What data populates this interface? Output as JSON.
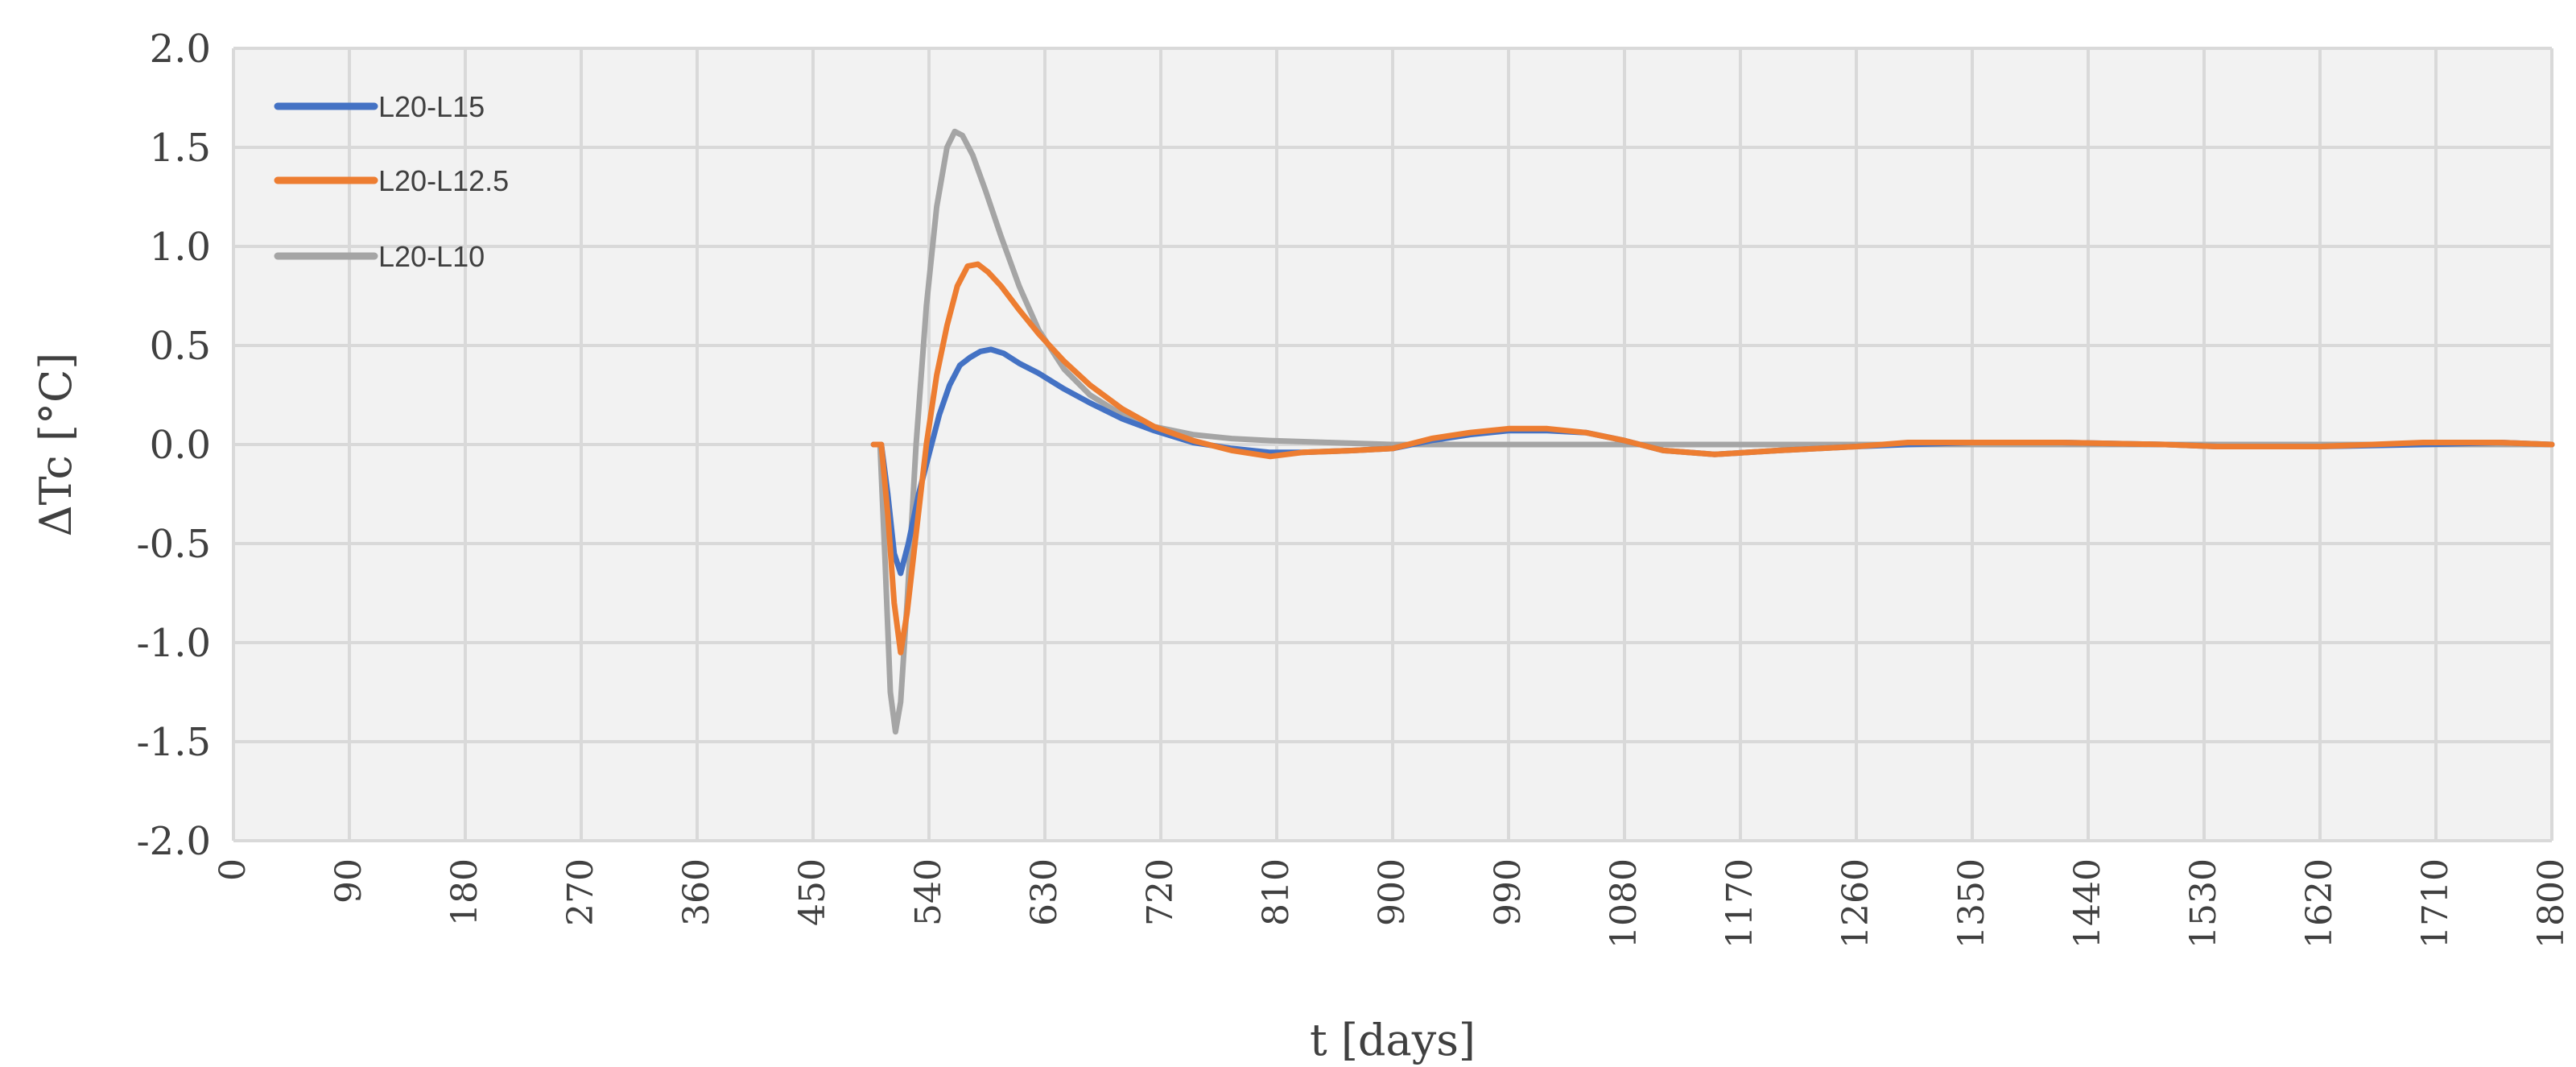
{
  "chart_data": {
    "type": "line",
    "xlabel": "t [days]",
    "ylabel": "ΔTc [°C]",
    "xlim": [
      0,
      1800
    ],
    "ylim": [
      -2.0,
      2.0
    ],
    "x_ticks": [
      0,
      90,
      180,
      270,
      360,
      450,
      540,
      630,
      720,
      810,
      900,
      990,
      1080,
      1170,
      1260,
      1350,
      1440,
      1530,
      1620,
      1710,
      1800
    ],
    "y_ticks": [
      "2.0",
      "1.5",
      "1.0",
      "0.5",
      "0.0",
      "-0.5",
      "-1.0",
      "-1.5",
      "-2.0"
    ],
    "grid": true,
    "legend_position": "top-left",
    "series": [
      {
        "name": "L20-L15",
        "color": "#4472C4",
        "points": [
          [
            497,
            0
          ],
          [
            503,
            0
          ],
          [
            508,
            -0.25
          ],
          [
            513,
            -0.55
          ],
          [
            518,
            -0.65
          ],
          [
            524,
            -0.5
          ],
          [
            532,
            -0.25
          ],
          [
            540,
            -0.05
          ],
          [
            548,
            0.15
          ],
          [
            556,
            0.3
          ],
          [
            564,
            0.4
          ],
          [
            572,
            0.44
          ],
          [
            580,
            0.47
          ],
          [
            588,
            0.48
          ],
          [
            598,
            0.46
          ],
          [
            610,
            0.41
          ],
          [
            625,
            0.36
          ],
          [
            645,
            0.28
          ],
          [
            665,
            0.21
          ],
          [
            690,
            0.13
          ],
          [
            715,
            0.07
          ],
          [
            745,
            0.01
          ],
          [
            775,
            -0.02
          ],
          [
            805,
            -0.04
          ],
          [
            830,
            -0.04
          ],
          [
            870,
            -0.03
          ],
          [
            900,
            -0.02
          ],
          [
            930,
            0.02
          ],
          [
            960,
            0.05
          ],
          [
            990,
            0.07
          ],
          [
            1020,
            0.07
          ],
          [
            1050,
            0.06
          ],
          [
            1080,
            0.02
          ],
          [
            1110,
            -0.03
          ],
          [
            1150,
            -0.05
          ],
          [
            1200,
            -0.03
          ],
          [
            1260,
            -0.01
          ],
          [
            1300,
            0.0
          ],
          [
            1350,
            0.01
          ],
          [
            1420,
            0.01
          ],
          [
            1500,
            0.0
          ],
          [
            1540,
            -0.01
          ],
          [
            1620,
            -0.01
          ],
          [
            1700,
            0.0
          ],
          [
            1760,
            0.01
          ],
          [
            1800,
            0.0
          ]
        ]
      },
      {
        "name": "L20-L12.5",
        "color": "#ED7D31",
        "points": [
          [
            497,
            0
          ],
          [
            503,
            0
          ],
          [
            508,
            -0.35
          ],
          [
            513,
            -0.8
          ],
          [
            518,
            -1.05
          ],
          [
            523,
            -0.85
          ],
          [
            530,
            -0.45
          ],
          [
            538,
            0.0
          ],
          [
            546,
            0.35
          ],
          [
            554,
            0.6
          ],
          [
            562,
            0.8
          ],
          [
            570,
            0.9
          ],
          [
            578,
            0.91
          ],
          [
            586,
            0.87
          ],
          [
            596,
            0.8
          ],
          [
            610,
            0.68
          ],
          [
            625,
            0.56
          ],
          [
            645,
            0.42
          ],
          [
            665,
            0.3
          ],
          [
            690,
            0.18
          ],
          [
            715,
            0.09
          ],
          [
            745,
            0.02
          ],
          [
            775,
            -0.03
          ],
          [
            805,
            -0.06
          ],
          [
            830,
            -0.04
          ],
          [
            870,
            -0.03
          ],
          [
            900,
            -0.02
          ],
          [
            930,
            0.03
          ],
          [
            960,
            0.06
          ],
          [
            990,
            0.08
          ],
          [
            1020,
            0.08
          ],
          [
            1050,
            0.06
          ],
          [
            1080,
            0.02
          ],
          [
            1110,
            -0.03
          ],
          [
            1150,
            -0.05
          ],
          [
            1200,
            -0.03
          ],
          [
            1260,
            -0.01
          ],
          [
            1300,
            0.01
          ],
          [
            1350,
            0.01
          ],
          [
            1420,
            0.01
          ],
          [
            1500,
            0.0
          ],
          [
            1540,
            -0.01
          ],
          [
            1620,
            -0.01
          ],
          [
            1700,
            0.01
          ],
          [
            1760,
            0.01
          ],
          [
            1800,
            0.0
          ]
        ]
      },
      {
        "name": "L20-L10",
        "color": "#A5A5A5",
        "points": [
          [
            497,
            0
          ],
          [
            502,
            0
          ],
          [
            506,
            -0.6
          ],
          [
            510,
            -1.25
          ],
          [
            514,
            -1.45
          ],
          [
            518,
            -1.3
          ],
          [
            523,
            -0.8
          ],
          [
            530,
            0.0
          ],
          [
            538,
            0.7
          ],
          [
            546,
            1.2
          ],
          [
            554,
            1.5
          ],
          [
            560,
            1.58
          ],
          [
            566,
            1.56
          ],
          [
            574,
            1.46
          ],
          [
            584,
            1.28
          ],
          [
            596,
            1.05
          ],
          [
            610,
            0.8
          ],
          [
            625,
            0.58
          ],
          [
            645,
            0.38
          ],
          [
            665,
            0.25
          ],
          [
            690,
            0.15
          ],
          [
            715,
            0.09
          ],
          [
            745,
            0.05
          ],
          [
            775,
            0.03
          ],
          [
            805,
            0.02
          ],
          [
            850,
            0.01
          ],
          [
            900,
            0.0
          ],
          [
            1000,
            0.0
          ],
          [
            1200,
            0.0
          ],
          [
            1500,
            0.0
          ],
          [
            1800,
            0.0
          ]
        ]
      }
    ]
  }
}
